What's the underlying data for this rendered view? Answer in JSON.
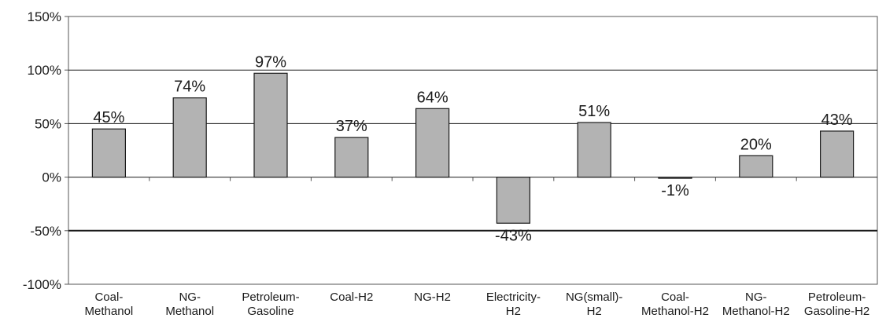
{
  "chart_data": {
    "type": "bar",
    "title": "",
    "xlabel": "",
    "ylabel": "",
    "categories": [
      [
        "Coal-",
        "Methanol"
      ],
      [
        "NG-",
        "Methanol"
      ],
      [
        "Petroleum-",
        "Gasoline"
      ],
      [
        "Coal-H2"
      ],
      [
        "NG-H2"
      ],
      [
        "Electricity-",
        "H2"
      ],
      [
        "NG(small)-",
        "H2"
      ],
      [
        "Coal-",
        "Methanol-H2"
      ],
      [
        "NG-",
        "Methanol-H2"
      ],
      [
        "Petroleum-",
        "Gasoline-H2"
      ]
    ],
    "values": [
      45,
      74,
      97,
      37,
      64,
      -43,
      51,
      -1,
      20,
      43
    ],
    "value_labels": [
      "45%",
      "74%",
      "97%",
      "37%",
      "64%",
      "-43%",
      "51%",
      "-1%",
      "20%",
      "43%"
    ],
    "ylim": [
      -100,
      150
    ],
    "yticks": [
      -100,
      -50,
      0,
      50,
      100,
      150
    ],
    "ytick_labels": [
      "-100%",
      "-50%",
      "0%",
      "50%",
      "100%",
      "150%"
    ],
    "grid": true,
    "legend": "none",
    "colors": {
      "bar_fill": "#b3b3b3",
      "bar_stroke": "#1a1a1a",
      "grid": "#1a1a1a",
      "axis": "#555555"
    }
  }
}
